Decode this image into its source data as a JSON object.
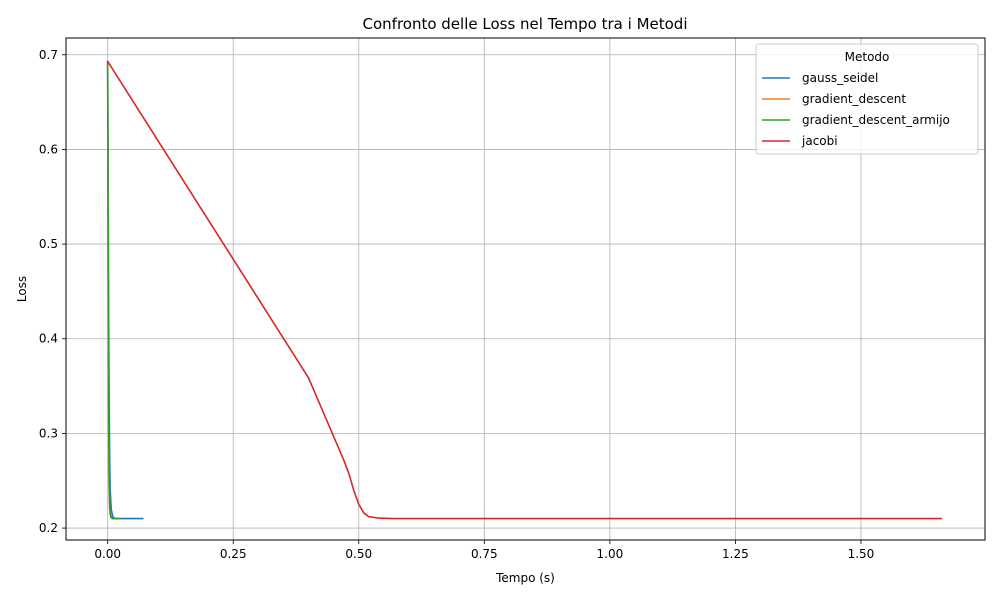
{
  "chart_data": {
    "type": "line",
    "title": "Confronto delle Loss nel Tempo tra i Metodi",
    "xlabel": "Tempo (s)",
    "ylabel": "Loss",
    "xlim": [
      -0.083,
      1.747
    ],
    "ylim": [
      0.1874,
      0.7177
    ],
    "xticks": [
      0.0,
      0.25,
      0.5,
      0.75,
      1.0,
      1.25,
      1.5
    ],
    "xtick_labels": [
      "0.00",
      "0.25",
      "0.50",
      "0.75",
      "1.00",
      "1.25",
      "1.50"
    ],
    "yticks": [
      0.2,
      0.3,
      0.4,
      0.5,
      0.6,
      0.7
    ],
    "ytick_labels": [
      "0.2",
      "0.3",
      "0.4",
      "0.5",
      "0.6",
      "0.7"
    ],
    "grid": true,
    "legend": {
      "title": "Metodo",
      "placement": "top-right"
    },
    "series": [
      {
        "name": "gauss_seidel",
        "color": "#1f77b4",
        "x": [
          0.0,
          0.001,
          0.002,
          0.003,
          0.004,
          0.005,
          0.007,
          0.01,
          0.015,
          0.02,
          0.03,
          0.05,
          0.07
        ],
        "y": [
          0.693,
          0.55,
          0.42,
          0.33,
          0.27,
          0.24,
          0.22,
          0.212,
          0.21,
          0.21,
          0.21,
          0.21,
          0.21
        ]
      },
      {
        "name": "gradient_descent",
        "color": "#ff7f0e",
        "x": [
          0.0,
          0.001,
          0.002,
          0.003,
          0.004,
          0.006,
          0.01
        ],
        "y": [
          0.693,
          0.45,
          0.3,
          0.24,
          0.22,
          0.212,
          0.21
        ]
      },
      {
        "name": "gradient_descent_armijo",
        "color": "#2ca02c",
        "x": [
          0.0,
          0.001,
          0.002,
          0.003,
          0.004,
          0.005,
          0.007,
          0.01,
          0.015,
          0.02
        ],
        "y": [
          0.693,
          0.48,
          0.32,
          0.25,
          0.225,
          0.215,
          0.211,
          0.21,
          0.21,
          0.21
        ]
      },
      {
        "name": "jacobi",
        "color": "#d62728",
        "x": [
          0.0,
          0.1,
          0.2,
          0.3,
          0.4,
          0.47,
          0.48,
          0.49,
          0.5,
          0.51,
          0.52,
          0.54,
          0.57,
          0.6,
          0.8,
          1.0,
          1.2,
          1.4,
          1.66
        ],
        "y": [
          0.693,
          0.6094,
          0.5258,
          0.4422,
          0.3586,
          0.272,
          0.258,
          0.24,
          0.225,
          0.216,
          0.212,
          0.2105,
          0.21,
          0.21,
          0.21,
          0.21,
          0.21,
          0.21,
          0.21
        ]
      }
    ]
  }
}
